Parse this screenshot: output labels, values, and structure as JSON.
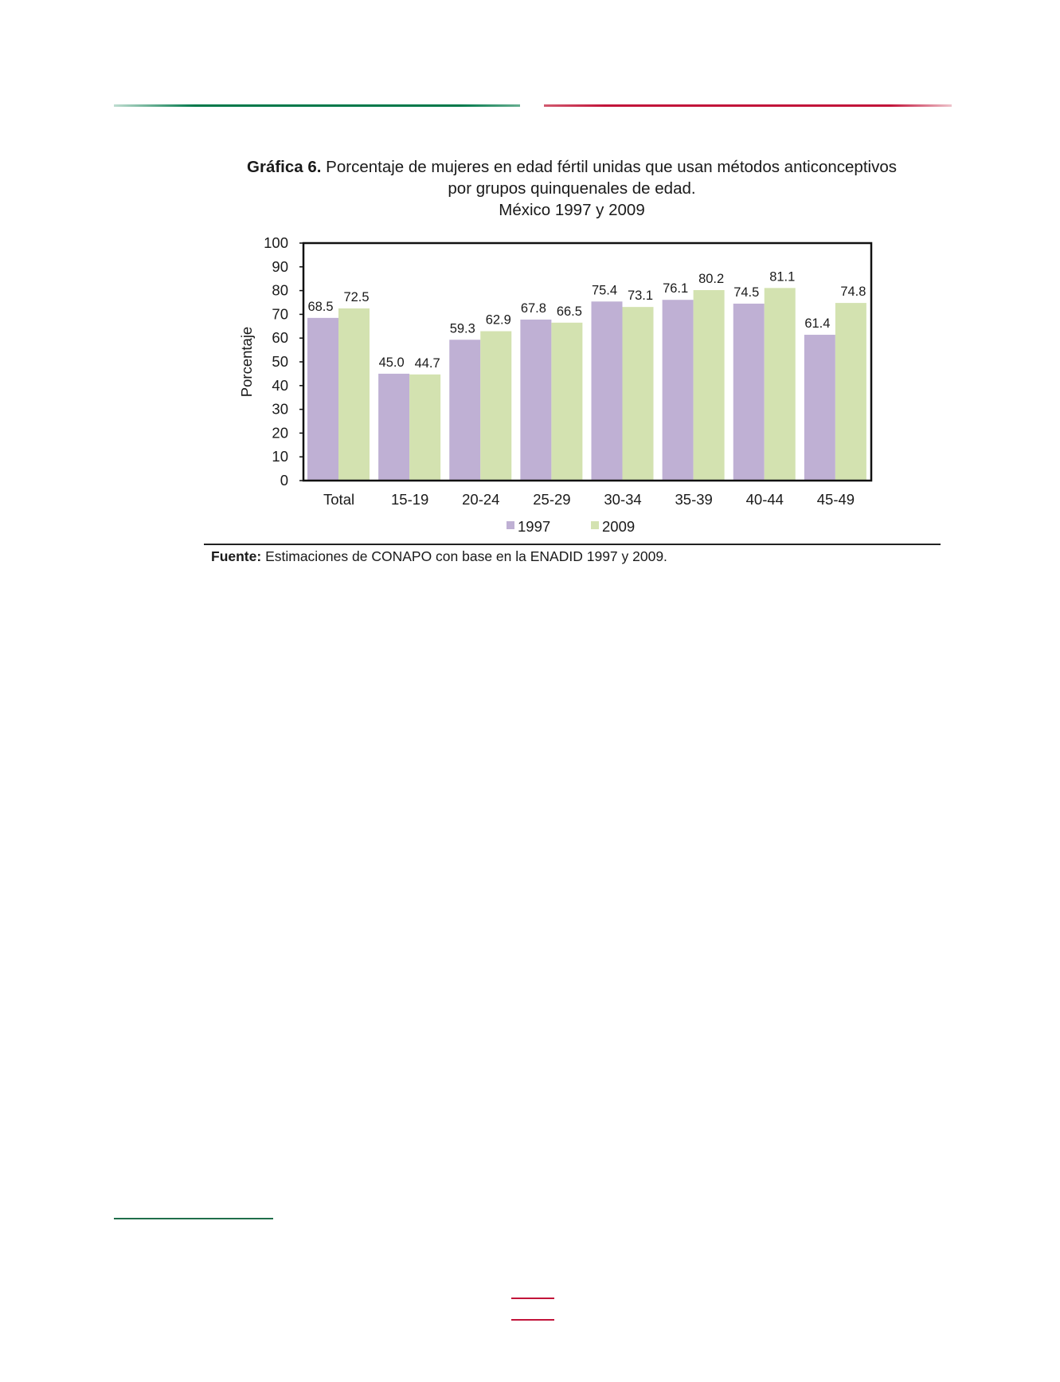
{
  "header": {
    "left_rule_color": "#00784a",
    "right_rule_color": "#c2143a"
  },
  "chart_title": {
    "label": "Gráfica 6.",
    "line1": "Porcentaje de mujeres en edad fértil unidas que usan métodos anticonceptivos",
    "line2": "por grupos quinquenales de edad.",
    "line3": "México 1997 y 2009"
  },
  "chart_data": {
    "type": "bar",
    "categories": [
      "Total",
      "15-19",
      "20-24",
      "25-29",
      "30-34",
      "35-39",
      "40-44",
      "45-49"
    ],
    "series": [
      {
        "name": "1997",
        "color": "#bfb0d4",
        "values": [
          68.5,
          45.0,
          59.3,
          67.8,
          75.4,
          76.1,
          74.5,
          61.4
        ]
      },
      {
        "name": "2009",
        "color": "#d3e2b0",
        "values": [
          72.5,
          44.7,
          62.9,
          66.5,
          73.1,
          80.2,
          81.1,
          74.8
        ]
      }
    ],
    "ylabel": "Porcentaje",
    "ylim": [
      0,
      100
    ],
    "yticks": [
      0,
      10,
      20,
      30,
      40,
      50,
      60,
      70,
      80,
      90,
      100
    ],
    "legend_position": "bottom",
    "grid": false
  },
  "source": {
    "label": "Fuente:",
    "text": "Estimaciones de CONAPO con base en la ENADID 1997 y 2009."
  }
}
